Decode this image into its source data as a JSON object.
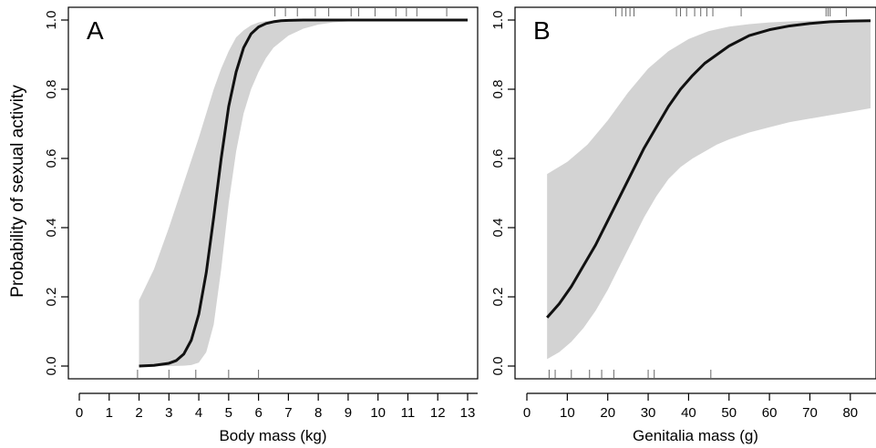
{
  "figure": {
    "ylabel": "Probability of sexual activity"
  },
  "chart_data": [
    {
      "type": "line",
      "panel_label": "A",
      "xlabel": "Body mass (kg)",
      "ylabel": "Probability of sexual activity",
      "xlim": [
        0,
        13
      ],
      "ylim": [
        0,
        1
      ],
      "xticks": [
        0,
        1,
        2,
        3,
        4,
        5,
        6,
        7,
        8,
        9,
        10,
        11,
        12,
        13
      ],
      "yticks": [
        0.0,
        0.2,
        0.4,
        0.6,
        0.8,
        1.0
      ],
      "ytick_labels": [
        "0.0",
        "0.2",
        "0.4",
        "0.6",
        "0.8",
        "1.0"
      ],
      "grid": false,
      "fit_color": "#111111",
      "band_color": "#d3d3d3",
      "fit": {
        "x": [
          2.0,
          2.5,
          3.0,
          3.25,
          3.5,
          3.75,
          4.0,
          4.25,
          4.5,
          4.75,
          5.0,
          5.25,
          5.5,
          5.75,
          6.0,
          6.25,
          6.5,
          6.75,
          7.0,
          7.5,
          8.0,
          9.0,
          10.0,
          11.0,
          12.0,
          13.0
        ],
        "y": [
          0.0,
          0.002,
          0.008,
          0.016,
          0.035,
          0.075,
          0.15,
          0.27,
          0.43,
          0.6,
          0.75,
          0.85,
          0.92,
          0.96,
          0.98,
          0.99,
          0.995,
          0.998,
          0.999,
          1.0,
          1.0,
          1.0,
          1.0,
          1.0,
          1.0,
          1.0
        ]
      },
      "ci_upper": {
        "x": [
          2.0,
          2.5,
          3.0,
          3.5,
          4.0,
          4.25,
          4.5,
          4.75,
          5.0,
          5.25,
          5.5,
          5.75,
          6.0,
          6.25,
          6.5,
          7.0,
          7.5,
          8.0,
          9.0,
          10.0,
          11.0,
          12.0,
          13.0
        ],
        "y": [
          0.19,
          0.28,
          0.4,
          0.53,
          0.66,
          0.73,
          0.8,
          0.86,
          0.91,
          0.95,
          0.97,
          0.985,
          0.993,
          0.997,
          0.999,
          1.0,
          1.0,
          1.0,
          1.0,
          1.0,
          1.0,
          1.0,
          1.0
        ]
      },
      "ci_lower": {
        "x": [
          2.0,
          3.0,
          3.5,
          3.75,
          4.0,
          4.25,
          4.5,
          4.75,
          5.0,
          5.25,
          5.5,
          5.75,
          6.0,
          6.25,
          6.5,
          7.0,
          7.5,
          8.0,
          8.5,
          9.0,
          10.0,
          11.0,
          12.0,
          13.0
        ],
        "y": [
          0.0,
          0.0,
          0.001,
          0.003,
          0.01,
          0.04,
          0.12,
          0.28,
          0.47,
          0.62,
          0.73,
          0.8,
          0.85,
          0.89,
          0.92,
          0.955,
          0.975,
          0.987,
          0.993,
          0.996,
          0.999,
          1.0,
          1.0,
          1.0
        ]
      },
      "rug_top": [
        6.55,
        6.9,
        7.3,
        7.9,
        8.35,
        9.1,
        9.35,
        9.9,
        10.6,
        10.95,
        11.3,
        12.3
      ],
      "rug_bottom": [
        1.95,
        3.0,
        3.9,
        5.0,
        6.0
      ]
    },
    {
      "type": "line",
      "panel_label": "B",
      "xlabel": "Genitalia mass (g)",
      "ylabel": "",
      "xlim": [
        0,
        85
      ],
      "ylim": [
        0,
        1
      ],
      "xticks": [
        0,
        10,
        20,
        30,
        40,
        50,
        60,
        70,
        80
      ],
      "yticks": [
        0.0,
        0.2,
        0.4,
        0.6,
        0.8,
        1.0
      ],
      "ytick_labels": [
        "0.0",
        "0.2",
        "0.4",
        "0.6",
        "0.8",
        "1.0"
      ],
      "grid": false,
      "fit_color": "#111111",
      "band_color": "#d3d3d3",
      "fit": {
        "x": [
          5,
          8,
          11,
          14,
          17,
          20,
          23,
          26,
          29,
          32,
          35,
          38,
          41,
          44,
          47,
          50,
          55,
          60,
          65,
          70,
          75,
          80,
          85
        ],
        "y": [
          0.14,
          0.18,
          0.23,
          0.29,
          0.35,
          0.42,
          0.49,
          0.56,
          0.63,
          0.69,
          0.75,
          0.8,
          0.84,
          0.875,
          0.9,
          0.925,
          0.955,
          0.972,
          0.983,
          0.99,
          0.995,
          0.997,
          0.998
        ]
      },
      "ci_upper": {
        "x": [
          5,
          10,
          15,
          20,
          25,
          30,
          35,
          40,
          45,
          50,
          55,
          60,
          65,
          70,
          75,
          80,
          85
        ],
        "y": [
          0.555,
          0.59,
          0.64,
          0.71,
          0.79,
          0.86,
          0.91,
          0.945,
          0.968,
          0.981,
          0.988,
          0.993,
          0.996,
          0.998,
          0.999,
          0.999,
          1.0
        ]
      },
      "ci_lower": {
        "x": [
          5,
          8,
          11,
          14,
          17,
          20,
          23,
          26,
          29,
          32,
          35,
          38,
          41,
          44,
          47,
          50,
          55,
          60,
          65,
          70,
          75,
          80,
          85
        ],
        "y": [
          0.02,
          0.04,
          0.07,
          0.11,
          0.16,
          0.22,
          0.29,
          0.36,
          0.43,
          0.49,
          0.54,
          0.575,
          0.6,
          0.62,
          0.64,
          0.655,
          0.675,
          0.69,
          0.705,
          0.715,
          0.725,
          0.735,
          0.745
        ]
      },
      "rug_top": [
        22,
        23.5,
        24.5,
        25.5,
        26.5,
        37,
        38,
        39.5,
        41.5,
        43,
        44.5,
        46,
        53,
        74,
        74.5,
        75,
        79
      ],
      "rug_bottom": [
        5.5,
        7,
        11,
        15.5,
        18.5,
        21.5,
        30,
        31.5,
        45.5
      ]
    }
  ]
}
